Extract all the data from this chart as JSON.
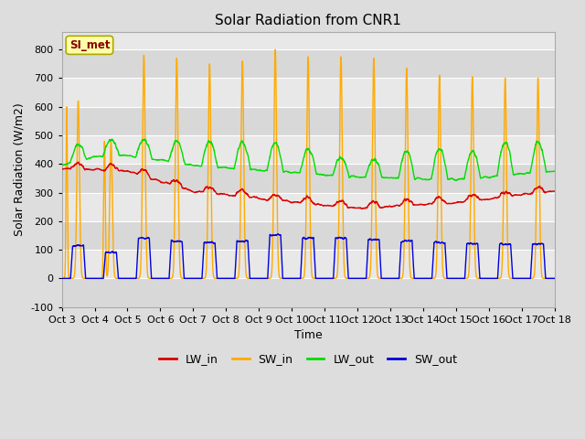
{
  "title": "Solar Radiation from CNR1",
  "xlabel": "Time",
  "ylabel": "Solar Radiation (W/m2)",
  "ylim": [
    -100,
    860
  ],
  "yticks": [
    -100,
    0,
    100,
    200,
    300,
    400,
    500,
    600,
    700,
    800
  ],
  "num_days": 15,
  "pts_per_day": 288,
  "xtick_labels": [
    "Oct 3",
    "Oct 4",
    "Oct 5",
    "Oct 6",
    "Oct 7",
    "Oct 8",
    "Oct 9",
    "Oct 10",
    "Oct 11",
    "Oct 12",
    "Oct 13",
    "Oct 14",
    "Oct 15",
    "Oct 16",
    "Oct 17",
    "Oct 18"
  ],
  "colors": {
    "LW_in": "#dd0000",
    "SW_in": "#ffaa00",
    "LW_out": "#00dd00",
    "SW_out": "#0000dd"
  },
  "legend_label": "SI_met",
  "legend_label_color": "#880000",
  "legend_box_facecolor": "#ffffaa",
  "legend_box_edgecolor": "#aaaa00",
  "fig_facecolor": "#dddddd",
  "plot_facecolor": "#e8e8e8",
  "grid_color": "#ffffff",
  "band_colors": [
    "#d8d8d8",
    "#e8e8e8"
  ],
  "linewidth": 1.0,
  "SW_in_peaks": [
    620,
    480,
    780,
    770,
    750,
    760,
    800,
    775,
    775,
    770,
    735,
    710,
    705,
    700,
    700
  ],
  "SW_out_peaks": [
    115,
    90,
    140,
    130,
    125,
    130,
    150,
    140,
    140,
    135,
    130,
    125,
    120,
    120,
    120
  ],
  "LW_in_trend_x": [
    0,
    2,
    4,
    6,
    9,
    12,
    15
  ],
  "LW_in_trend_y": [
    385,
    375,
    305,
    280,
    245,
    265,
    305
  ],
  "LW_out_trend_x": [
    0,
    1,
    2,
    4,
    6,
    9,
    12,
    15
  ],
  "LW_out_trend_y": [
    395,
    425,
    430,
    395,
    378,
    355,
    345,
    375
  ]
}
